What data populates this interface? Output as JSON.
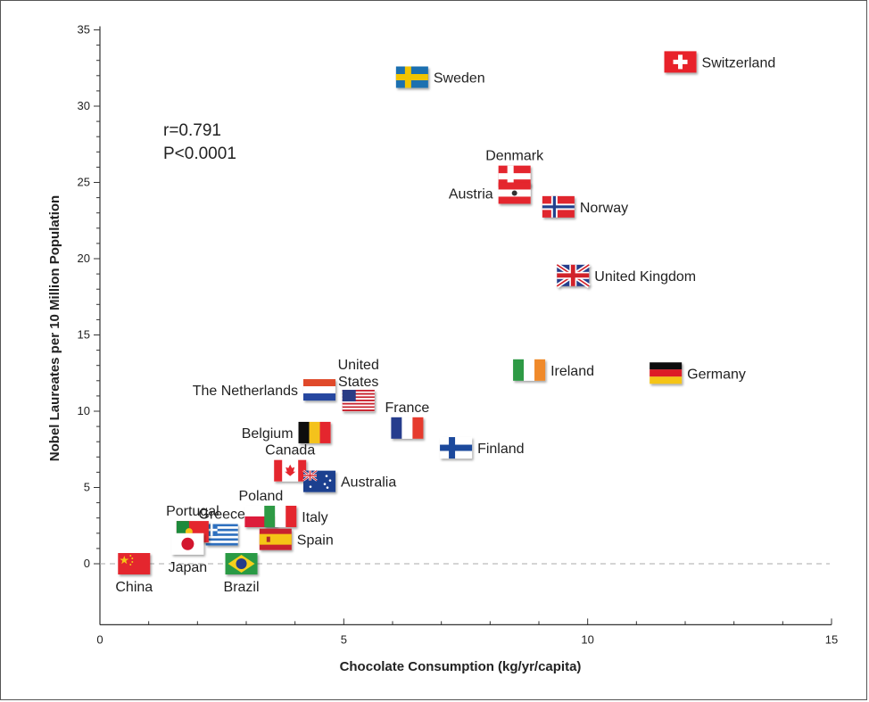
{
  "chart_data": {
    "type": "scatter",
    "title": "",
    "xlabel": "Chocolate Consumption (kg/yr/capita)",
    "ylabel": "Nobel Laureates per 10 Million Population",
    "xlim": [
      0,
      15
    ],
    "ylim": [
      -4,
      35
    ],
    "xticks": [
      "0",
      "5",
      "10",
      "15"
    ],
    "yticks": [
      "0",
      "5",
      "10",
      "15",
      "20",
      "25",
      "30",
      "35"
    ],
    "annotations": [
      "r=0.791",
      "P<0.0001"
    ],
    "reference_line": 0,
    "grid": false,
    "points": [
      {
        "country": "Switzerland",
        "x": 11.9,
        "y": 32.9,
        "label_side": "right",
        "flag": "switzerland"
      },
      {
        "country": "Sweden",
        "x": 6.4,
        "y": 31.9,
        "label_side": "right",
        "flag": "sweden"
      },
      {
        "country": "Denmark",
        "x": 8.5,
        "y": 25.4,
        "label_side": "top",
        "flag": "denmark"
      },
      {
        "country": "Austria",
        "x": 8.5,
        "y": 24.3,
        "label_side": "left",
        "flag": "austria"
      },
      {
        "country": "Norway",
        "x": 9.4,
        "y": 23.4,
        "label_side": "right",
        "flag": "norway"
      },
      {
        "country": "United Kingdom",
        "x": 9.7,
        "y": 18.9,
        "label_side": "right",
        "flag": "uk"
      },
      {
        "country": "Ireland",
        "x": 8.8,
        "y": 12.7,
        "label_side": "right",
        "flag": "ireland"
      },
      {
        "country": "Germany",
        "x": 11.6,
        "y": 12.5,
        "label_side": "right",
        "flag": "germany"
      },
      {
        "country": "The Netherlands",
        "x": 4.5,
        "y": 11.4,
        "label_side": "left",
        "flag": "netherlands"
      },
      {
        "country": "United States",
        "x": 5.3,
        "y": 10.7,
        "label_side": "top",
        "flag": "usa"
      },
      {
        "country": "France",
        "x": 6.3,
        "y": 8.9,
        "label_side": "top",
        "flag": "france"
      },
      {
        "country": "Belgium",
        "x": 4.4,
        "y": 8.6,
        "label_side": "left",
        "flag": "belgium"
      },
      {
        "country": "Finland",
        "x": 7.3,
        "y": 7.6,
        "label_side": "right",
        "flag": "finland"
      },
      {
        "country": "Canada",
        "x": 3.9,
        "y": 6.1,
        "label_side": "top",
        "flag": "canada"
      },
      {
        "country": "Australia",
        "x": 4.5,
        "y": 5.4,
        "label_side": "right",
        "flag": "australia"
      },
      {
        "country": "Poland",
        "x": 3.3,
        "y": 3.1,
        "label_side": "top",
        "flag": "poland"
      },
      {
        "country": "Italy",
        "x": 3.7,
        "y": 3.1,
        "label_side": "right",
        "flag": "italy"
      },
      {
        "country": "Greece",
        "x": 2.5,
        "y": 1.9,
        "label_side": "top",
        "flag": "greece"
      },
      {
        "country": "Portugal",
        "x": 1.9,
        "y": 2.1,
        "label_side": "top",
        "flag": "portugal"
      },
      {
        "country": "Spain",
        "x": 3.6,
        "y": 1.6,
        "label_side": "right",
        "flag": "spain"
      },
      {
        "country": "Japan",
        "x": 1.8,
        "y": 1.3,
        "label_side": "bottom",
        "flag": "japan"
      },
      {
        "country": "China",
        "x": 0.7,
        "y": 0.0,
        "label_side": "bottom",
        "flag": "china"
      },
      {
        "country": "Brazil",
        "x": 2.9,
        "y": 0.0,
        "label_side": "bottom",
        "flag": "brazil"
      }
    ]
  }
}
